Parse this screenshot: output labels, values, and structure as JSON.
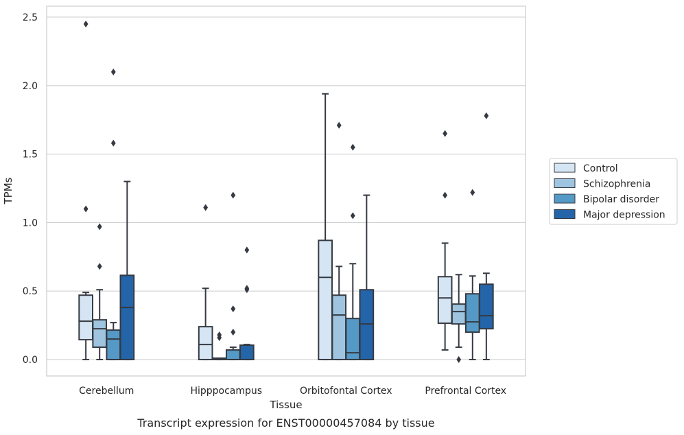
{
  "colors": {
    "series": [
      "#d6e5f3",
      "#9ec4df",
      "#5599c6",
      "#2464a8"
    ],
    "box_edge": "#353a42",
    "grid": "#cfcfcf",
    "frame": "#cccccc"
  },
  "chart_data": {
    "type": "box",
    "xlabel": "Tissue",
    "ylabel": "TPMs",
    "caption": "Transcript expression for ENST00000457084 by tissue",
    "ylim": [
      -0.12,
      2.58
    ],
    "yticks": [
      0.0,
      0.5,
      1.0,
      1.5,
      2.0,
      2.5
    ],
    "ytick_labels": [
      "0.0",
      "0.5",
      "1.0",
      "1.5",
      "2.0",
      "2.5"
    ],
    "grid": "horizontal",
    "legend_position": "right",
    "categories": [
      "Cerebellum",
      "Hipppocampus",
      "Orbitofontal Cortex",
      "Prefrontal Cortex"
    ],
    "series": [
      {
        "name": "Control",
        "boxes": [
          {
            "whisker_low": 0.0,
            "q1": 0.145,
            "median": 0.28,
            "q3": 0.47,
            "whisker_high": 0.49,
            "outliers": [
              1.1,
              2.45
            ]
          },
          {
            "whisker_low": 0.0,
            "q1": 0.0,
            "median": 0.11,
            "q3": 0.24,
            "whisker_high": 0.52,
            "outliers": [
              1.11
            ]
          },
          {
            "whisker_low": 0.0,
            "q1": 0.0,
            "median": 0.6,
            "q3": 0.87,
            "whisker_high": 1.94,
            "outliers": []
          },
          {
            "whisker_low": 0.07,
            "q1": 0.265,
            "median": 0.45,
            "q3": 0.605,
            "whisker_high": 0.85,
            "outliers": [
              1.2,
              1.65
            ]
          }
        ]
      },
      {
        "name": "Schizophrenia",
        "boxes": [
          {
            "whisker_low": 0.0,
            "q1": 0.09,
            "median": 0.225,
            "q3": 0.29,
            "whisker_high": 0.51,
            "outliers": [
              0.68,
              0.97
            ]
          },
          {
            "whisker_low": 0.0,
            "q1": 0.0,
            "median": 0.008,
            "q3": 0.01,
            "whisker_high": 0.01,
            "outliers": [
              0.16,
              0.18
            ]
          },
          {
            "whisker_low": 0.0,
            "q1": 0.0,
            "median": 0.325,
            "q3": 0.47,
            "whisker_high": 0.68,
            "outliers": [
              1.71
            ]
          },
          {
            "whisker_low": 0.09,
            "q1": 0.26,
            "median": 0.35,
            "q3": 0.405,
            "whisker_high": 0.62,
            "outliers": [
              0.0
            ]
          }
        ]
      },
      {
        "name": "Bipolar disorder",
        "boxes": [
          {
            "whisker_low": 0.0,
            "q1": 0.0,
            "median": 0.15,
            "q3": 0.215,
            "whisker_high": 0.27,
            "outliers": [
              1.58,
              2.1
            ]
          },
          {
            "whisker_low": 0.0,
            "q1": 0.0,
            "median": 0.0,
            "q3": 0.07,
            "whisker_high": 0.09,
            "outliers": [
              0.2,
              0.37,
              1.2
            ]
          },
          {
            "whisker_low": 0.0,
            "q1": 0.0,
            "median": 0.05,
            "q3": 0.3,
            "whisker_high": 0.7,
            "outliers": [
              1.05,
              1.55
            ]
          },
          {
            "whisker_low": 0.0,
            "q1": 0.2,
            "median": 0.275,
            "q3": 0.48,
            "whisker_high": 0.61,
            "outliers": [
              1.22
            ]
          }
        ]
      },
      {
        "name": "Major depression",
        "boxes": [
          {
            "whisker_low": 0.0,
            "q1": 0.0,
            "median": 0.38,
            "q3": 0.615,
            "whisker_high": 1.3,
            "outliers": []
          },
          {
            "whisker_low": 0.0,
            "q1": 0.0,
            "median": 0.0,
            "q3": 0.105,
            "whisker_high": 0.11,
            "outliers": [
              0.51,
              0.52,
              0.8
            ]
          },
          {
            "whisker_low": 0.0,
            "q1": 0.0,
            "median": 0.26,
            "q3": 0.51,
            "whisker_high": 1.2,
            "outliers": []
          },
          {
            "whisker_low": 0.0,
            "q1": 0.225,
            "median": 0.32,
            "q3": 0.55,
            "whisker_high": 0.63,
            "outliers": [
              1.78
            ]
          }
        ]
      }
    ]
  }
}
